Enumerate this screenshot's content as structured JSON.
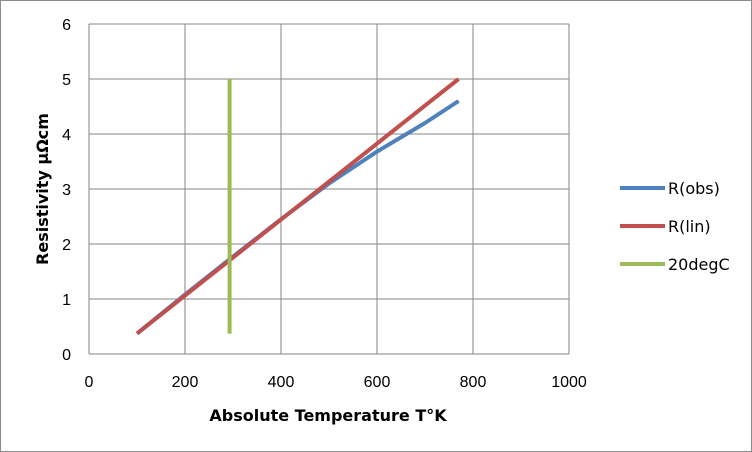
{
  "chart_data": {
    "type": "line",
    "title": "",
    "xlabel": "Absolute Temperature T°K",
    "ylabel": "Resistivity µΩcm",
    "xlim": [
      0,
      1000
    ],
    "ylim": [
      0,
      6
    ],
    "x_ticks": [
      "0",
      "200",
      "400",
      "600",
      "800",
      "1000"
    ],
    "y_ticks": [
      "0",
      "1",
      "2",
      "3",
      "4",
      "5",
      "6"
    ],
    "grid": true,
    "legend_position": "right",
    "series": [
      {
        "name": "R(obs)",
        "color": "#4f81bd",
        "x": [
          100,
          200,
          300,
          400,
          500,
          600,
          700,
          770
        ],
        "y": [
          0.37,
          1.08,
          1.77,
          2.45,
          3.1,
          3.68,
          4.2,
          4.6
        ]
      },
      {
        "name": "R(lin)",
        "color": "#c0504d",
        "x": [
          100,
          770
        ],
        "y": [
          0.37,
          5.0
        ]
      },
      {
        "name": "20degC",
        "color": "#9bbb59",
        "x": [
          293,
          293
        ],
        "y": [
          0.37,
          5.0
        ]
      }
    ]
  }
}
